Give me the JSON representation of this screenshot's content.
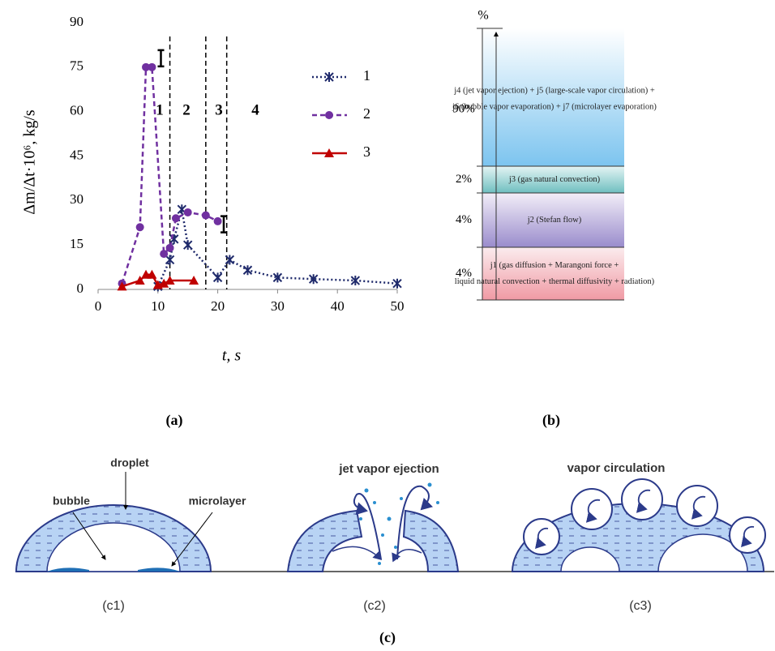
{
  "chart_data": {
    "type": "line",
    "xlabel": "t, s",
    "ylabel": "Δm/Δt·10⁶, kg/s",
    "panel_label": "(a)",
    "xlim": [
      0,
      50
    ],
    "xticks": [
      0,
      10,
      20,
      30,
      40,
      50
    ],
    "ylim": [
      0,
      90
    ],
    "yticks": [
      0,
      15,
      30,
      45,
      60,
      75,
      90
    ],
    "series": [
      {
        "name": "1",
        "color": "#1f2a6b",
        "marker": "asterisk",
        "line_style": "dotted",
        "x": [
          10,
          12,
          12.7,
          14,
          15,
          20,
          22,
          25,
          30,
          36,
          43,
          50
        ],
        "values": [
          1,
          10,
          17,
          27,
          15,
          4,
          10,
          6.5,
          4,
          3.5,
          3,
          2
        ]
      },
      {
        "name": "2",
        "color": "#7030a0",
        "marker": "circle",
        "line_style": "dashed",
        "x": [
          4,
          7,
          8,
          9,
          11,
          12,
          13,
          15,
          18,
          20
        ],
        "values": [
          2,
          21,
          75,
          75,
          12,
          14,
          24,
          26,
          25,
          23
        ]
      },
      {
        "name": "3",
        "color": "#c00000",
        "marker": "triangle",
        "line_style": "solid",
        "x": [
          4,
          7,
          8,
          9,
          10,
          11,
          12,
          16
        ],
        "values": [
          1,
          3,
          5,
          5,
          1.5,
          2,
          3,
          3
        ]
      }
    ],
    "error_markers": [
      {
        "x": 10.5,
        "y": 78
      },
      {
        "x": 21,
        "y": 22
      }
    ],
    "region_lines": [
      12,
      18,
      21.5
    ],
    "region_labels": [
      "1",
      "2",
      "3",
      "4"
    ],
    "legend": "right"
  },
  "panel_b": {
    "unit": "%",
    "panel_label": "(b)",
    "segments": [
      {
        "label": "90%",
        "lines": [
          "j4 (jet vapor ejection) + j5 (large-scale vapor circulation) +",
          "j6 (bubble vapor evaporation) + j7 (microlayer evaporation)"
        ]
      },
      {
        "label": "2%",
        "lines": [
          "j3 (gas natural convection)"
        ]
      },
      {
        "label": "4%",
        "lines": [
          "j2 (Stefan flow)"
        ]
      },
      {
        "label": "4%",
        "lines": [
          "j1 (gas diffusion + Marangoni force +",
          "liquid natural convection + thermal diffusivity + radiation)"
        ]
      }
    ]
  },
  "panel_c": {
    "panel_label": "(c)",
    "c1": {
      "label": "(c1)",
      "droplet": "droplet",
      "bubble": "bubble",
      "microlayer": "microlayer"
    },
    "c2": {
      "label": "(c2)",
      "title": "jet vapor ejection"
    },
    "c3": {
      "label": "(c3)",
      "title": "vapor circulation"
    }
  }
}
